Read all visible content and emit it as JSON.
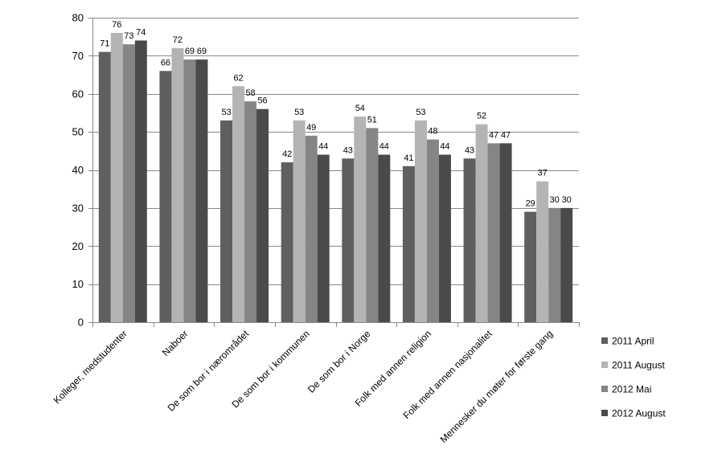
{
  "chart_data": {
    "type": "bar",
    "categories": [
      "Kolleger, medstudenter",
      "Naboer",
      "De som bor i nærområdet",
      "De som bor i kommunen",
      "De som bor i Norge",
      "Folk med annen religion",
      "Folk med annen nasjonalitet",
      "Mennesker du møter for første gang"
    ],
    "series": [
      {
        "name": "2011 April",
        "color": "#5f5f5f",
        "values": [
          71,
          66,
          53,
          42,
          43,
          41,
          43,
          29
        ]
      },
      {
        "name": "2011 August",
        "color": "#b4b4b4",
        "values": [
          76,
          72,
          62,
          53,
          54,
          53,
          52,
          37
        ]
      },
      {
        "name": "2012 Mai",
        "color": "#858585",
        "values": [
          73,
          69,
          58,
          49,
          51,
          48,
          47,
          30
        ]
      },
      {
        "name": "2012 August",
        "color": "#4a4a4a",
        "values": [
          74,
          69,
          56,
          44,
          44,
          44,
          47,
          30
        ]
      }
    ],
    "ylim": [
      0,
      80
    ],
    "yticks": [
      0,
      10,
      20,
      30,
      40,
      50,
      60,
      70,
      80
    ],
    "grid": true,
    "legend": "right"
  }
}
